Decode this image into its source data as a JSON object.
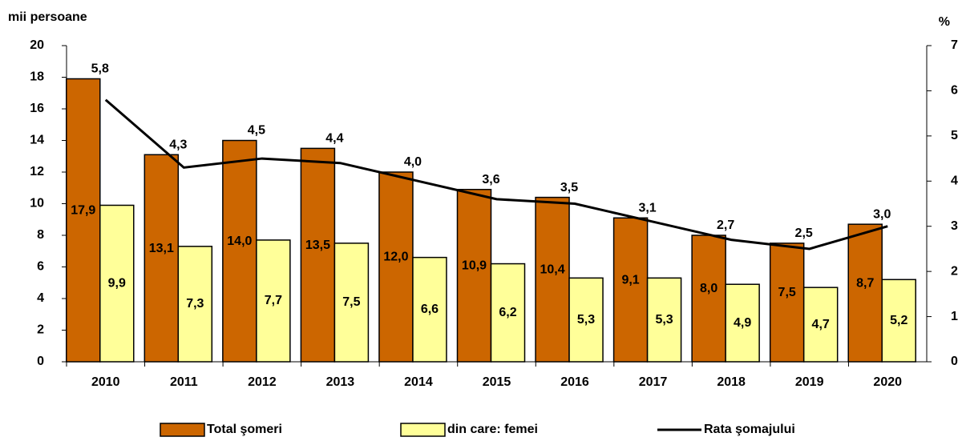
{
  "chart_data": {
    "type": "bar_line",
    "ylabel": "mii persoane",
    "y2label": "%",
    "categories": [
      "2010",
      "2011",
      "2012",
      "2013",
      "2014",
      "2015",
      "2016",
      "2017",
      "2018",
      "2019",
      "2020"
    ],
    "series": [
      {
        "name": "Total şomeri",
        "type": "bar",
        "color": "#cc6600",
        "label_color": "#ffffff",
        "values": [
          17.9,
          13.1,
          14.0,
          13.5,
          12.0,
          10.9,
          10.4,
          9.1,
          8.0,
          7.5,
          8.7
        ],
        "value_labels": [
          "17,9",
          "13,1",
          "14,0",
          "13,5",
          "12,0",
          "10,9",
          "10,4",
          "9,1",
          "8,0",
          "7,5",
          "8,7"
        ]
      },
      {
        "name": "din care: femei",
        "type": "bar",
        "color": "#ffff99",
        "label_color": "#800000",
        "values": [
          9.9,
          7.3,
          7.7,
          7.5,
          6.6,
          6.2,
          5.3,
          5.3,
          4.9,
          4.7,
          5.2
        ],
        "value_labels": [
          "9,9",
          "7,3",
          "7,7",
          "7,5",
          "6,6",
          "6,2",
          "5,3",
          "5,3",
          "4,9",
          "4,7",
          "5,2"
        ]
      },
      {
        "name": "Rata şomajului",
        "type": "line",
        "axis": "y2",
        "color": "#000000",
        "values": [
          5.8,
          4.3,
          4.5,
          4.4,
          4.0,
          3.6,
          3.5,
          3.1,
          2.7,
          2.5,
          3.0
        ],
        "value_labels": [
          "5,8",
          "4,3",
          "4,5",
          "4,4",
          "4,0",
          "3,6",
          "3,5",
          "3,1",
          "2,7",
          "2,5",
          "3,0"
        ]
      }
    ],
    "ylim": [
      0,
      20
    ],
    "yticks": [
      0,
      2,
      4,
      6,
      8,
      10,
      12,
      14,
      16,
      18,
      20
    ],
    "y2lim": [
      0,
      7
    ],
    "y2ticks": [
      0,
      1,
      2,
      3,
      4,
      5,
      6,
      7
    ]
  }
}
